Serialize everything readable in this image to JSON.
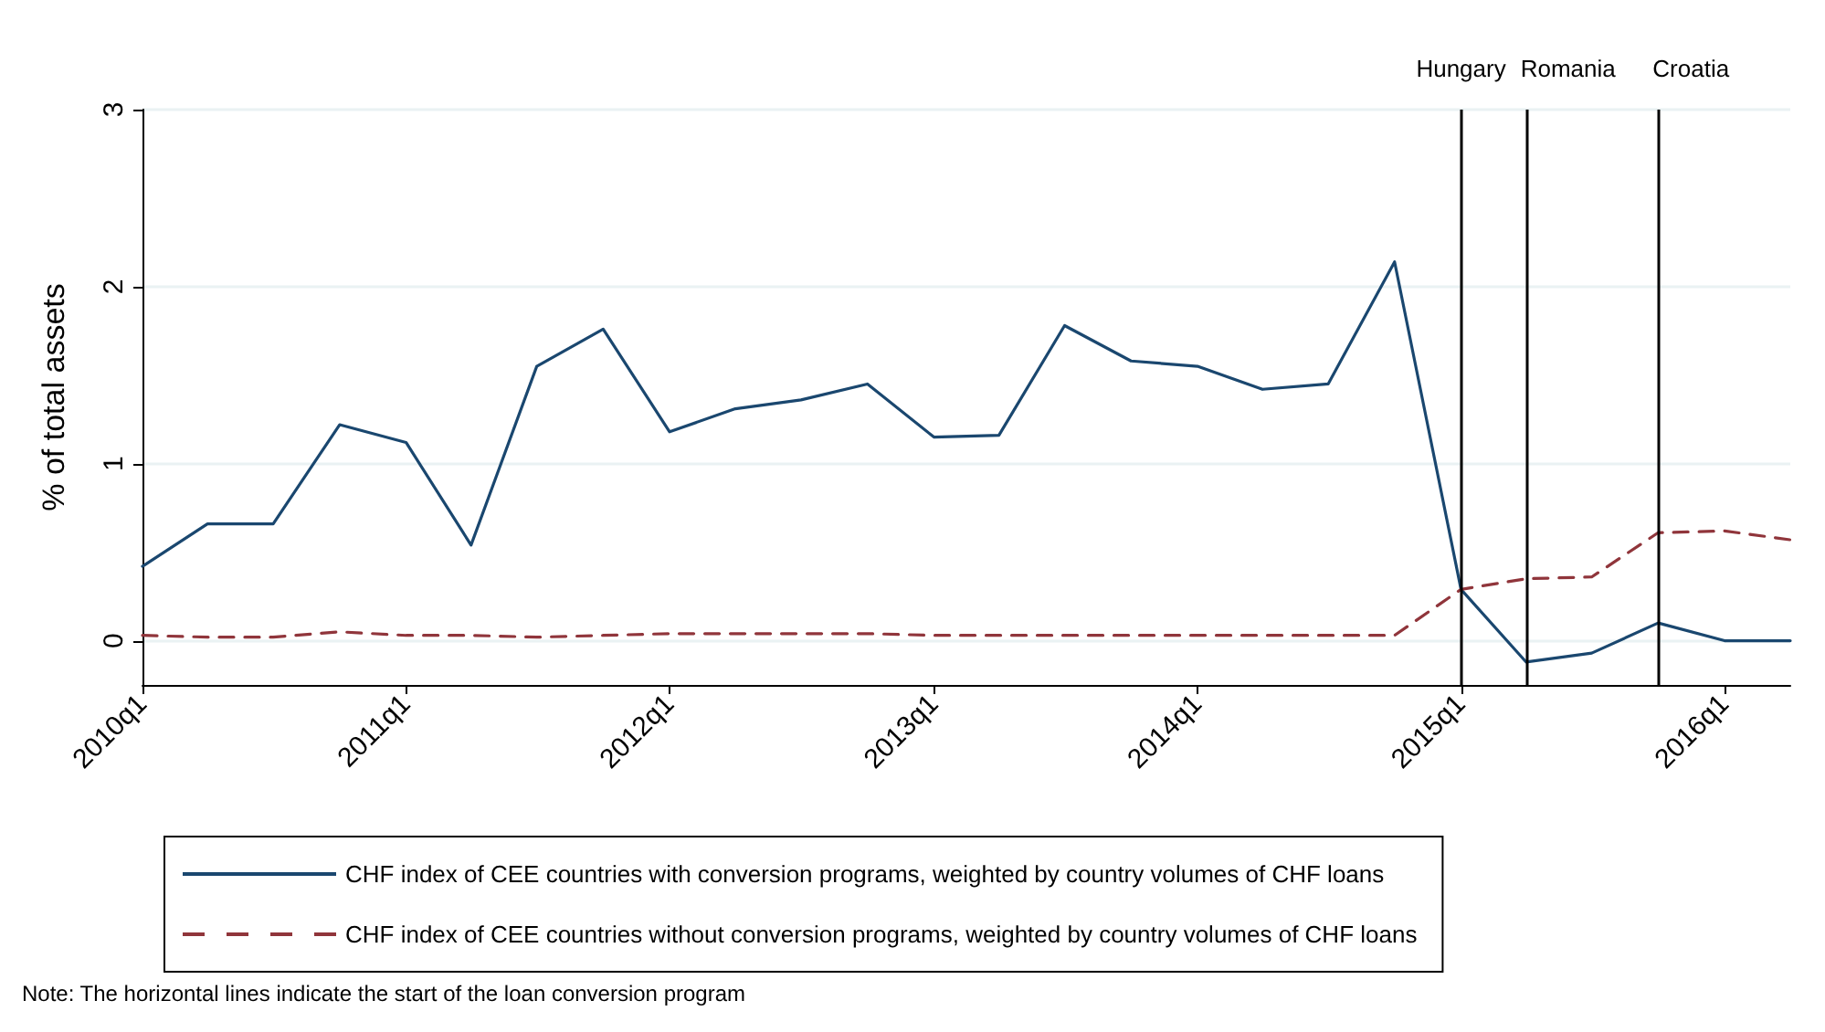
{
  "chart_data": {
    "type": "line",
    "ylabel": "% of total assets",
    "x": [
      "2010-01",
      "2010-04",
      "2010-07",
      "2010-10",
      "2011-01",
      "2011-04",
      "2011-07",
      "2011-10",
      "2012-01",
      "2012-04",
      "2012-07",
      "2012-10",
      "2013-01",
      "2013-04",
      "2013-07",
      "2013-10",
      "2014-01",
      "2014-04",
      "2014-07",
      "2014-10",
      "2015-01",
      "2015-04",
      "2015-07",
      "2015-10",
      "2016-01",
      "2016-04"
    ],
    "series": [
      {
        "name": "CHF index of CEE countries with conversion programs, weighted by country volumes of CHF loans",
        "color": "#1a476f",
        "line_style": "solid",
        "values": [
          0.42,
          0.66,
          0.66,
          1.22,
          1.12,
          0.54,
          1.55,
          1.76,
          1.18,
          1.31,
          1.36,
          1.45,
          1.15,
          1.16,
          1.78,
          1.58,
          1.55,
          1.42,
          1.45,
          2.14,
          0.29,
          -0.12,
          -0.07,
          0.1,
          0.0,
          0.0
        ]
      },
      {
        "name": "CHF index of CEE countries without conversion programs, weighted by country volumes of CHF loans",
        "color": "#90353b",
        "line_style": "dashed",
        "values": [
          0.03,
          0.02,
          0.02,
          0.05,
          0.03,
          0.03,
          0.02,
          0.03,
          0.04,
          0.04,
          0.04,
          0.04,
          0.03,
          0.03,
          0.03,
          0.03,
          0.03,
          0.03,
          0.03,
          0.03,
          0.29,
          0.35,
          0.36,
          0.61,
          0.62,
          0.57
        ]
      }
    ],
    "xlim": [
      "2010-01",
      "2016-04"
    ],
    "xticks": [
      {
        "value": "2010-01",
        "label": "2010q1"
      },
      {
        "value": "2011-01",
        "label": "2011q1"
      },
      {
        "value": "2012-01",
        "label": "2012q1"
      },
      {
        "value": "2013-01",
        "label": "2013q1"
      },
      {
        "value": "2014-01",
        "label": "2014q1"
      },
      {
        "value": "2015-01",
        "label": "2015q1"
      },
      {
        "value": "2016-01",
        "label": "2016q1"
      }
    ],
    "ylim": [
      -0.25,
      3
    ],
    "yticks": [
      0,
      1,
      2,
      3
    ],
    "grid": "y",
    "legend": "bottom",
    "marker": "none",
    "ref_lines": [
      {
        "axis": "x",
        "value": "2015-01",
        "label": "Hungary",
        "color": "#000000"
      },
      {
        "axis": "x",
        "value": "2015-04",
        "label": "Romania",
        "color": "#000000"
      },
      {
        "axis": "x",
        "value": "2015-10",
        "label": "Croatia",
        "color": "#000000"
      }
    ],
    "annotations": [
      "Note: The horizontal lines indicate the start of the loan conversion program"
    ]
  }
}
